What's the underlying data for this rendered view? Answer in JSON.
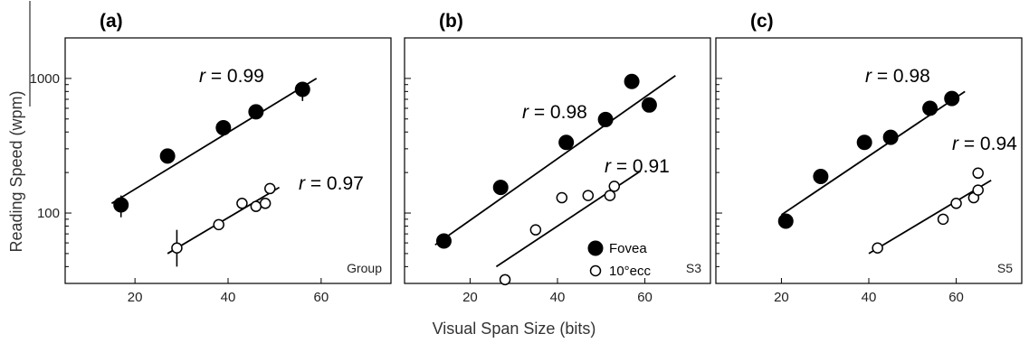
{
  "figure": {
    "xlabel": "Visual Span Size (bits)",
    "ylabel": "Reading Speed (wpm)",
    "legend": [
      {
        "label": "Fovea",
        "marker": "filled-circle"
      },
      {
        "label": "10°ecc",
        "marker": "open-circle"
      }
    ]
  },
  "chart_data": [
    {
      "type": "scatter",
      "panel_label": "(a)",
      "corner_label": "Group",
      "xlim": [
        5,
        75
      ],
      "ylim_log": [
        30,
        2000
      ],
      "xticks": [
        20,
        40,
        60
      ],
      "yticks": [
        100,
        1000
      ],
      "ytick_labels": [
        "100",
        "1000"
      ],
      "y_scale": "log",
      "series": [
        {
          "marker": "filled",
          "r_prefix": "r",
          "r_value": "= 0.99",
          "x": [
            17,
            27,
            39,
            46,
            56
          ],
          "y": [
            115,
            265,
            430,
            565,
            830
          ],
          "fit_x": [
            15,
            59
          ],
          "fit_y": [
            118,
            1000
          ],
          "error_bars": [
            {
              "x": 17,
              "low": 93,
              "high": 135
            },
            {
              "x": 56,
              "low": 680,
              "high": 930
            }
          ]
        },
        {
          "marker": "open",
          "r_prefix": "r",
          "r_value": "= 0.97",
          "x": [
            29,
            38,
            43,
            46,
            48,
            49
          ],
          "y": [
            55,
            82,
            118,
            112,
            118,
            152
          ],
          "fit_x": [
            27,
            51
          ],
          "fit_y": [
            50,
            155
          ],
          "error_bars": [
            {
              "x": 29,
              "low": 40,
              "high": 75
            }
          ]
        }
      ]
    },
    {
      "type": "scatter",
      "panel_label": "(b)",
      "corner_label": "S3",
      "xlim": [
        5,
        75
      ],
      "ylim_log": [
        30,
        2000
      ],
      "xticks": [
        20,
        40,
        60
      ],
      "yticks": [
        100,
        1000
      ],
      "ytick_labels": [
        "",
        ""
      ],
      "y_scale": "log",
      "series": [
        {
          "marker": "filled",
          "r_prefix": "r",
          "r_value": "= 0.98",
          "x": [
            14,
            27,
            42,
            51,
            57,
            61
          ],
          "y": [
            62,
            155,
            335,
            495,
            950,
            635
          ],
          "fit_x": [
            12,
            67
          ],
          "fit_y": [
            58,
            1050
          ],
          "error_bars": []
        },
        {
          "marker": "open",
          "r_prefix": "r",
          "r_value": "= 0.91",
          "x": [
            28,
            35,
            41,
            47,
            52,
            53
          ],
          "y": [
            32,
            75,
            130,
            135,
            135,
            158
          ],
          "fit_x": [
            26,
            59
          ],
          "fit_y": [
            40,
            205
          ],
          "error_bars": []
        }
      ]
    },
    {
      "type": "scatter",
      "panel_label": "(c)",
      "corner_label": "S5",
      "xlim": [
        5,
        75
      ],
      "ylim_log": [
        30,
        2000
      ],
      "xticks": [
        20,
        40,
        60
      ],
      "yticks": [
        100,
        1000
      ],
      "ytick_labels": [
        "",
        ""
      ],
      "y_scale": "log",
      "series": [
        {
          "marker": "filled",
          "r_prefix": "r",
          "r_value": "= 0.98",
          "x": [
            21,
            29,
            39,
            45,
            54,
            59
          ],
          "y": [
            87,
            187,
            335,
            365,
            600,
            710
          ],
          "fit_x": [
            20,
            62
          ],
          "fit_y": [
            97,
            800
          ],
          "error_bars": []
        },
        {
          "marker": "open",
          "r_prefix": "r",
          "r_value": "= 0.94",
          "x": [
            42,
            57,
            60,
            64,
            65,
            65
          ],
          "y": [
            55,
            90,
            118,
            130,
            148,
            198
          ],
          "fit_x": [
            40,
            68
          ],
          "fit_y": [
            50,
            175
          ],
          "error_bars": []
        }
      ]
    }
  ]
}
